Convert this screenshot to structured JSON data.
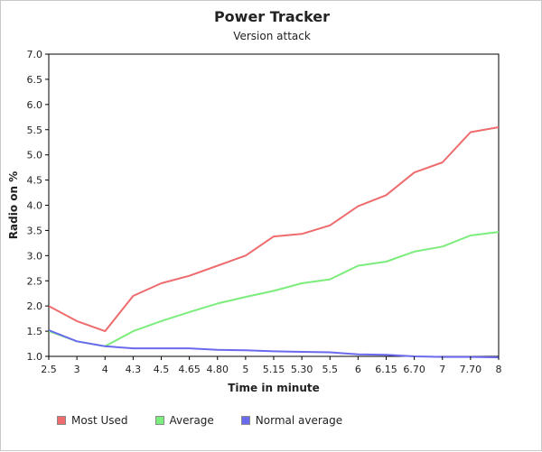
{
  "chart_data": {
    "type": "line",
    "title": "Power Tracker",
    "subtitle": "Version attack",
    "xlabel": "Time in minute",
    "ylabel": "Radio on %",
    "categories": [
      "2.5",
      "3",
      "4",
      "4.3",
      "4.5",
      "4.65",
      "4.80",
      "5",
      "5.15",
      "5.30",
      "5.5",
      "6",
      "6.15",
      "6.70",
      "7",
      "7.70",
      "8"
    ],
    "yticks": [
      "1.0",
      "1.5",
      "2.0",
      "2.5",
      "3.0",
      "3.5",
      "4.0",
      "4.5",
      "5.0",
      "5.5",
      "6.0",
      "6.5",
      "7.0"
    ],
    "ylim": [
      1.0,
      7.0
    ],
    "grid": false,
    "legend_position": "bottom-left",
    "series": [
      {
        "name": "Most Used",
        "color": "#ee6b6e",
        "values": [
          2.0,
          1.7,
          1.5,
          2.2,
          2.45,
          2.6,
          2.8,
          3.0,
          3.38,
          3.43,
          3.6,
          3.98,
          4.2,
          4.65,
          4.85,
          5.45,
          5.55
        ]
      },
      {
        "name": "Average",
        "color": "#7ced7c",
        "values": [
          1.5,
          1.3,
          1.2,
          1.5,
          1.7,
          1.88,
          2.05,
          2.18,
          2.3,
          2.45,
          2.53,
          2.8,
          2.88,
          3.08,
          3.18,
          3.4,
          3.47
        ]
      },
      {
        "name": "Normal average",
        "color": "#6a6aee",
        "values": [
          1.52,
          1.3,
          1.2,
          1.16,
          1.16,
          1.16,
          1.13,
          1.12,
          1.1,
          1.09,
          1.08,
          1.04,
          1.03,
          1.0,
          0.99,
          0.99,
          0.98
        ]
      }
    ]
  }
}
